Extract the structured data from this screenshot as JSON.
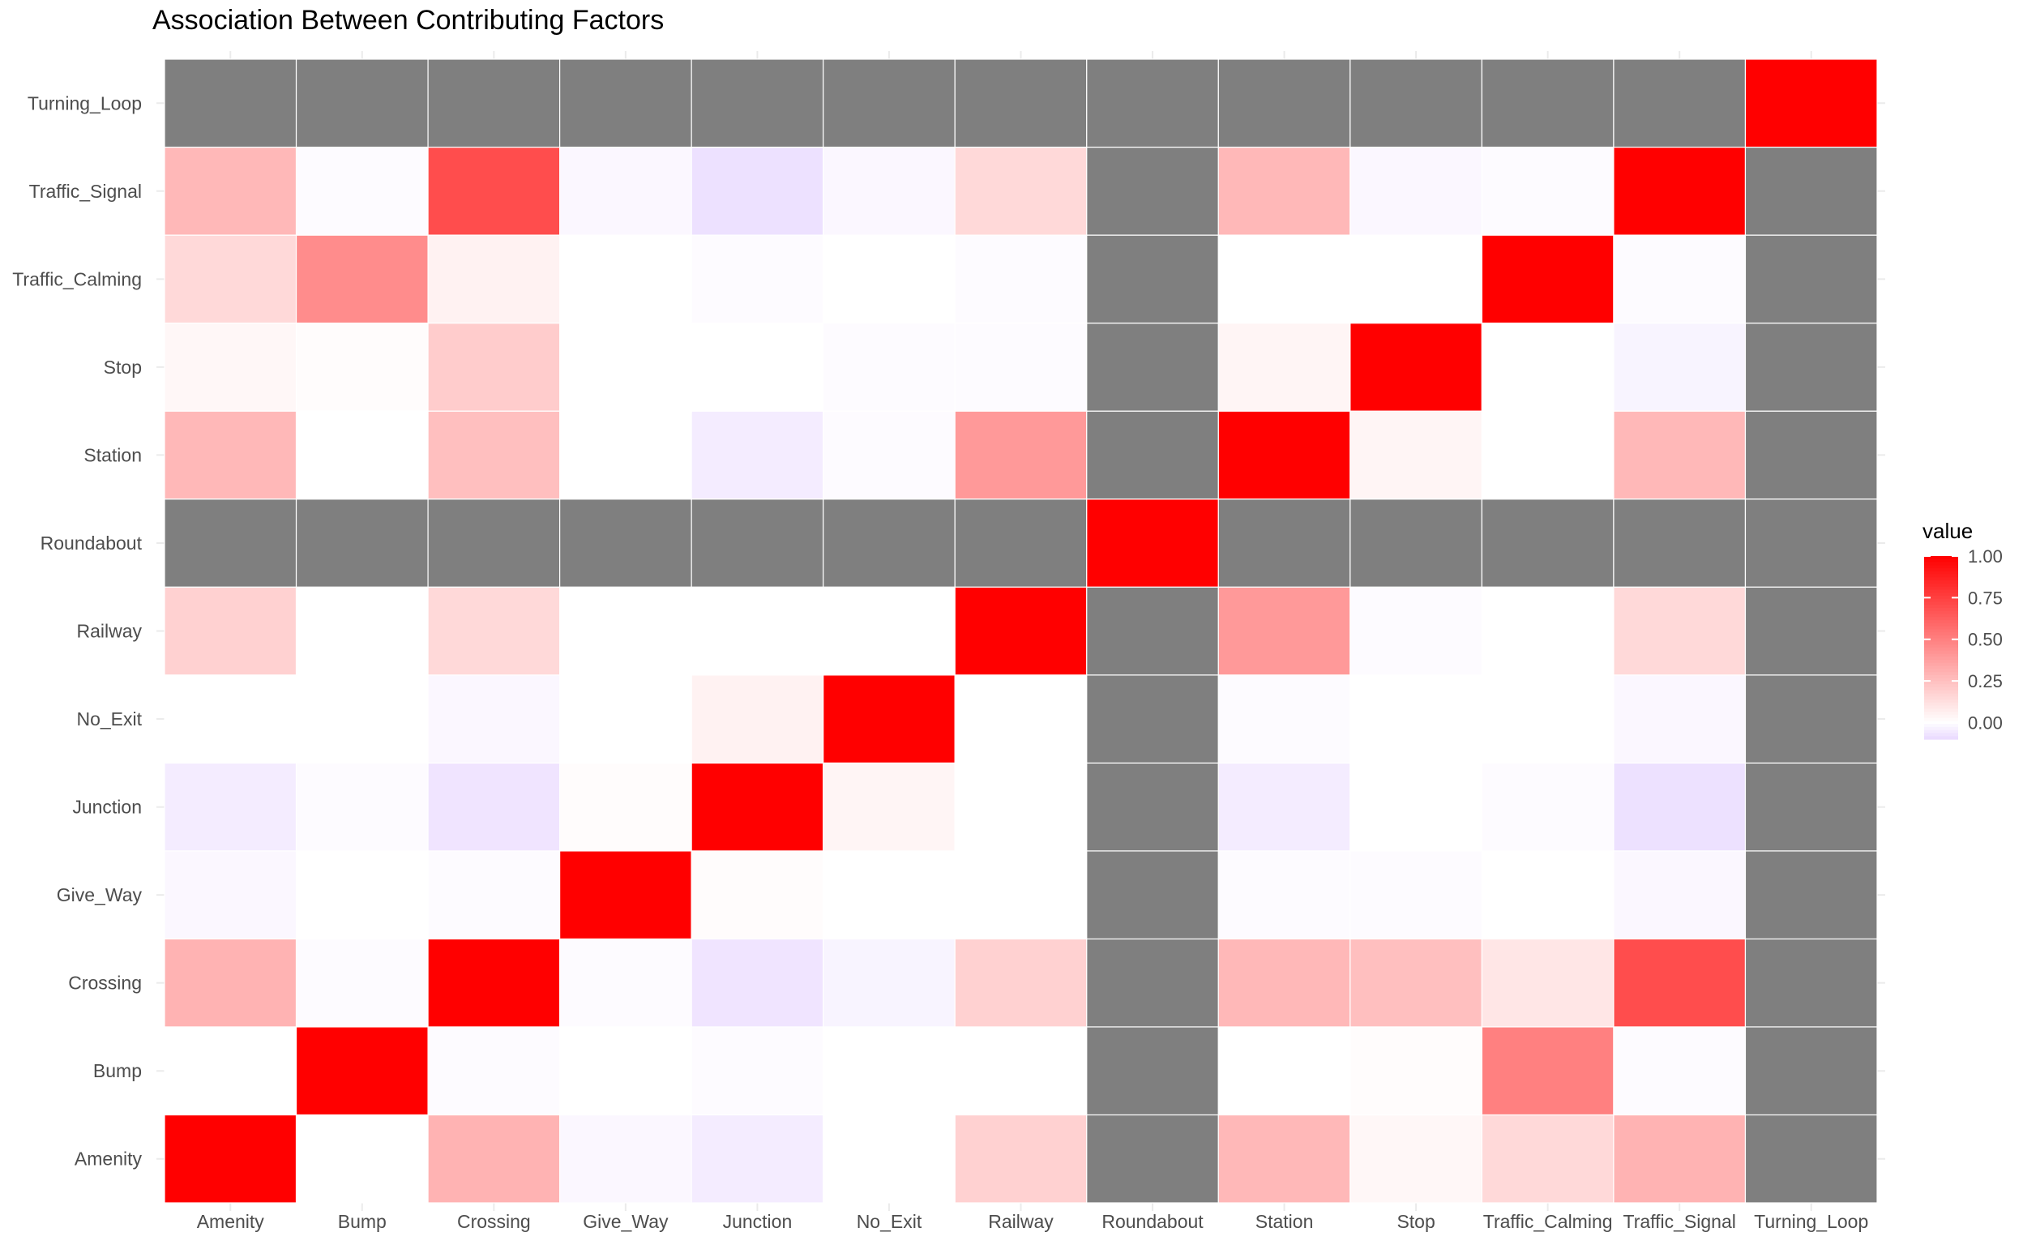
{
  "chart_data": {
    "type": "heatmap",
    "title": "Association Between Contributing Factors",
    "xlabel": "",
    "ylabel": "",
    "x_categories": [
      "Amenity",
      "Bump",
      "Crossing",
      "Give_Way",
      "Junction",
      "No_Exit",
      "Railway",
      "Roundabout",
      "Station",
      "Stop",
      "Traffic_Calming",
      "Traffic_Signal",
      "Turning_Loop"
    ],
    "y_categories": [
      "Amenity",
      "Bump",
      "Crossing",
      "Give_Way",
      "Junction",
      "No_Exit",
      "Railway",
      "Roundabout",
      "Station",
      "Stop",
      "Traffic_Calming",
      "Traffic_Signal",
      "Turning_Loop"
    ],
    "values": [
      [
        1.0,
        0.0,
        0.3,
        -0.02,
        -0.05,
        0.0,
        0.18,
        null,
        0.28,
        0.03,
        0.15,
        0.3,
        null
      ],
      [
        0.0,
        1.0,
        -0.01,
        0.0,
        -0.01,
        0.0,
        0.0,
        null,
        0.0,
        0.01,
        0.5,
        -0.01,
        null
      ],
      [
        0.3,
        -0.01,
        1.0,
        -0.01,
        -0.07,
        -0.03,
        0.18,
        null,
        0.28,
        0.25,
        0.1,
        0.7,
        null
      ],
      [
        -0.02,
        0.0,
        -0.01,
        1.0,
        0.01,
        0.0,
        0.0,
        null,
        -0.01,
        -0.01,
        0.0,
        -0.02,
        null
      ],
      [
        -0.05,
        -0.01,
        -0.07,
        0.01,
        1.0,
        0.04,
        0.0,
        null,
        -0.05,
        0.0,
        -0.01,
        -0.08,
        null
      ],
      [
        0.0,
        0.0,
        -0.02,
        0.0,
        0.05,
        1.0,
        0.0,
        null,
        -0.01,
        0.0,
        0.0,
        -0.02,
        null
      ],
      [
        0.18,
        0.0,
        0.15,
        0.0,
        0.0,
        0.0,
        1.0,
        null,
        0.4,
        -0.01,
        0.0,
        0.15,
        null
      ],
      [
        null,
        null,
        null,
        null,
        null,
        null,
        null,
        1.0,
        null,
        null,
        null,
        null,
        null
      ],
      [
        0.28,
        0.0,
        0.25,
        0.0,
        -0.05,
        -0.01,
        0.4,
        null,
        1.0,
        0.04,
        0.0,
        0.28,
        null
      ],
      [
        0.03,
        0.01,
        0.2,
        0.0,
        0.0,
        -0.01,
        -0.01,
        null,
        0.04,
        1.0,
        0.0,
        -0.03,
        null
      ],
      [
        0.15,
        0.45,
        0.05,
        0.0,
        -0.01,
        0.0,
        -0.01,
        null,
        0.0,
        0.0,
        1.0,
        -0.01,
        null
      ],
      [
        0.28,
        -0.01,
        0.7,
        -0.02,
        -0.08,
        -0.02,
        0.15,
        null,
        0.28,
        -0.02,
        -0.01,
        1.0,
        null
      ],
      [
        null,
        null,
        null,
        null,
        null,
        null,
        null,
        null,
        null,
        null,
        null,
        null,
        1.0
      ]
    ],
    "values_layout": "values[row][col]; row index follows y_categories (bottom to top), col index follows x_categories",
    "missing_color": "#7f7f7f",
    "color_scale": {
      "low": "#e9d9ff",
      "mid": "#ffffff",
      "high": "#ff0000",
      "midpoint": 0,
      "min": -0.1,
      "max": 1.0
    },
    "legend": {
      "title": "value",
      "position": "right",
      "ticks": [
        1.0,
        0.75,
        0.5,
        0.25,
        0.0
      ],
      "tick_labels": [
        "1.00",
        "0.75",
        "0.50",
        "0.25",
        "0.00"
      ]
    },
    "grid": true
  }
}
